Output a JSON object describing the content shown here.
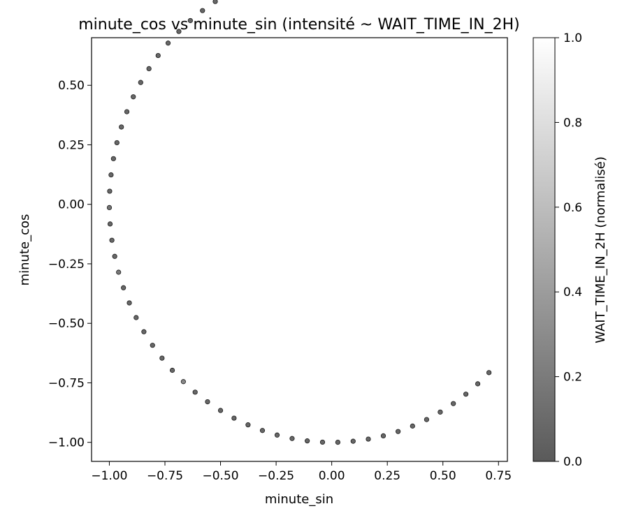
{
  "chart_data": {
    "type": "scatter",
    "title": "minute_cos vs minute_sin (intensité ~ WAIT_TIME_IN_2H)",
    "xlabel": "minute_sin",
    "ylabel": "minute_cos",
    "xlim": [
      -1.08,
      0.79
    ],
    "ylim": [
      -1.08,
      0.7
    ],
    "x_ticks": [
      -1.0,
      -0.75,
      -0.5,
      -0.25,
      0.0,
      0.25,
      0.5,
      0.75
    ],
    "x_tick_labels": [
      "−1.00",
      "−0.75",
      "−0.50",
      "−0.25",
      "0.00",
      "0.25",
      "0.50",
      "0.75"
    ],
    "y_ticks": [
      -1.0,
      -0.75,
      -0.5,
      -0.25,
      0.0,
      0.25,
      0.5
    ],
    "y_tick_labels": [
      "−1.00",
      "−0.75",
      "−0.50",
      "−0.25",
      "0.00",
      "0.25",
      "0.50"
    ],
    "points": {
      "angle_start_deg": 135,
      "angle_end_deg": 360,
      "count": 58,
      "default_intensity": 0.08,
      "highlights": [
        {
          "index": 22,
          "intensity": 0.28
        },
        {
          "index": 30,
          "intensity": 0.18
        },
        {
          "index": 34,
          "intensity": 0.15
        }
      ]
    },
    "colorbar": {
      "label": "WAIT_TIME_IN_2H (normalisé)",
      "range": [
        0.0,
        1.0
      ],
      "ticks": [
        0.0,
        0.2,
        0.4,
        0.6,
        0.8,
        1.0
      ],
      "tick_labels": [
        "0.0",
        "0.2",
        "0.4",
        "0.6",
        "0.8",
        "1.0"
      ],
      "color_low": "#5a5a5a",
      "color_high": "#ffffff"
    }
  }
}
